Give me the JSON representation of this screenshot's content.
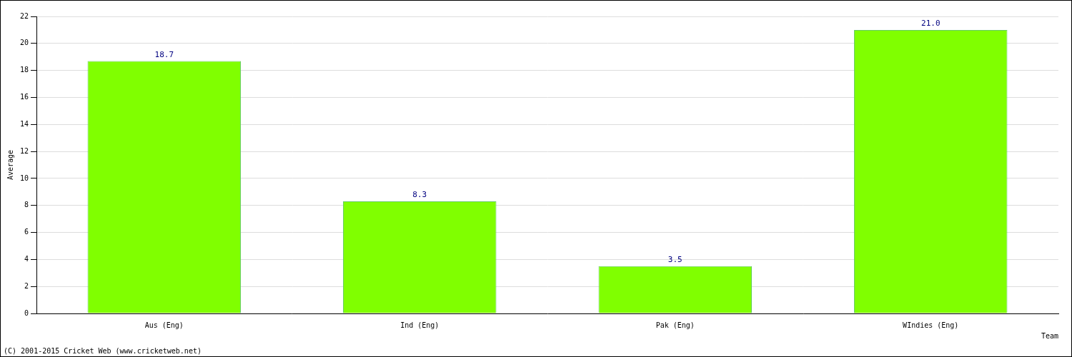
{
  "chart_data": {
    "type": "bar",
    "categories": [
      "Aus (Eng)",
      "Ind (Eng)",
      "Pak (Eng)",
      "WIndies (Eng)"
    ],
    "values": [
      18.7,
      8.3,
      3.5,
      21.0
    ],
    "value_labels": [
      "18.7",
      "8.3",
      "3.5",
      "21.0"
    ],
    "data_labels": true,
    "color": "#80ff00",
    "x_label": "Team",
    "y_label": "Average",
    "ylim": [
      0,
      22
    ],
    "yticks": [
      0,
      2,
      4,
      6,
      8,
      10,
      12,
      14,
      16,
      18,
      20,
      22
    ],
    "grid": true,
    "annotation": "(C) 2001-2015 Cricket Web (www.cricketweb.net)"
  }
}
